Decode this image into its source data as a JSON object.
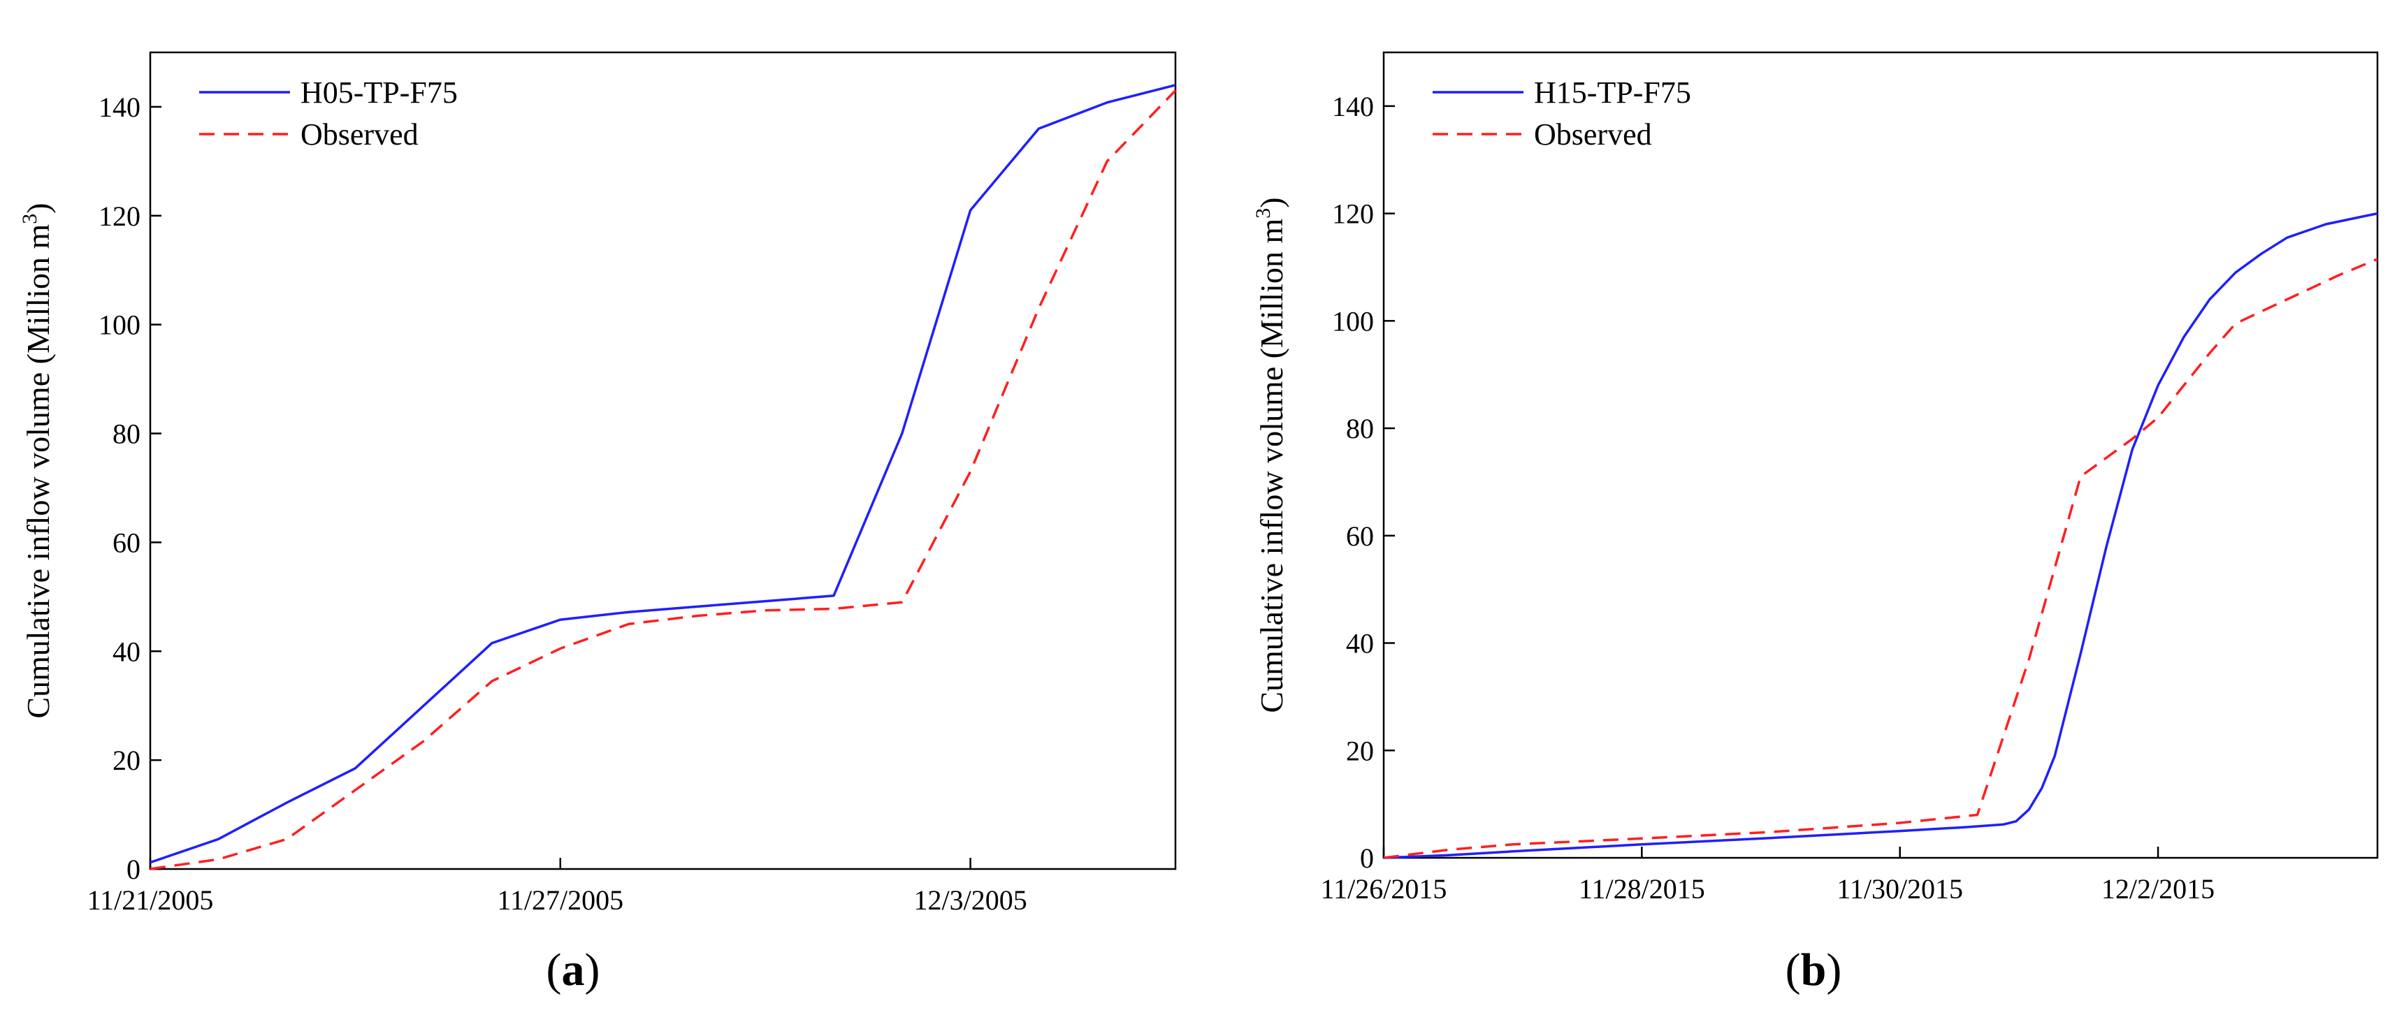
{
  "colors": {
    "model": "#1f1fff",
    "observed": "#ff1f1f",
    "axis": "#000000"
  },
  "chart_data": [
    {
      "type": "line",
      "panel_label": "a",
      "ylabel_prefix": "Cumulative inflow volume (Million m",
      "ylabel_superscript": "3",
      "ylabel_suffix": ")",
      "xlabel": "",
      "x_unit": "days since 11/21/2005",
      "xlim": [
        0,
        15
      ],
      "ylim": [
        0,
        150
      ],
      "yticks": [
        0,
        20,
        40,
        60,
        80,
        100,
        120,
        140
      ],
      "xticks": [
        {
          "value": 0,
          "label": "11/21/2005"
        },
        {
          "value": 6,
          "label": "11/27/2005"
        },
        {
          "value": 12,
          "label": "12/3/2005"
        }
      ],
      "legend_position": "top-left",
      "series": [
        {
          "name": "H05-TP-F75",
          "style": "solid",
          "color": "#1f1fff",
          "x": [
            0,
            1,
            2,
            3,
            4,
            5,
            6,
            7,
            8,
            9,
            10,
            11,
            12,
            13,
            14,
            15
          ],
          "y": [
            1.2,
            5.5,
            12.2,
            18.5,
            30,
            41.5,
            45.8,
            47.2,
            48.2,
            49.2,
            50.2,
            80,
            121,
            136,
            140.8,
            144
          ]
        },
        {
          "name": "Observed",
          "style": "dashed",
          "color": "#ff1f1f",
          "x": [
            0,
            1,
            2,
            3,
            4,
            5,
            6,
            7,
            8,
            9,
            10,
            11,
            12,
            13,
            14,
            15
          ],
          "y": [
            0,
            1.8,
            5.5,
            14.5,
            23.5,
            34.5,
            40.5,
            45,
            46.5,
            47.5,
            47.8,
            49,
            73,
            103,
            130,
            143
          ]
        }
      ]
    },
    {
      "type": "line",
      "panel_label": "b",
      "ylabel_prefix": "Cumulative inflow volume (Million m",
      "ylabel_superscript": "3",
      "ylabel_suffix": ")",
      "xlabel": "",
      "x_unit": "days since 11/26/2015",
      "xlim": [
        0,
        7.7
      ],
      "ylim": [
        0,
        150
      ],
      "yticks": [
        0,
        20,
        40,
        60,
        80,
        100,
        120,
        140
      ],
      "xticks": [
        {
          "value": 0,
          "label": "11/26/2015"
        },
        {
          "value": 2,
          "label": "11/28/2015"
        },
        {
          "value": 4,
          "label": "11/30/2015"
        },
        {
          "value": 6,
          "label": "12/2/2015"
        }
      ],
      "legend_position": "top-left",
      "series": [
        {
          "name": "H15-TP-F75",
          "style": "solid",
          "color": "#1f1fff",
          "x": [
            0,
            0.5,
            1,
            2,
            3,
            4,
            4.5,
            4.8,
            4.9,
            5.0,
            5.1,
            5.2,
            5.4,
            5.6,
            5.8,
            6.0,
            6.2,
            6.4,
            6.6,
            6.8,
            7.0,
            7.3,
            7.6,
            7.7
          ],
          "y": [
            0,
            0.5,
            1.2,
            2.5,
            3.7,
            5,
            5.7,
            6.2,
            6.8,
            9,
            13,
            19,
            38,
            58,
            76,
            88,
            97,
            104,
            109,
            112.5,
            115.5,
            118,
            119.5,
            120
          ]
        },
        {
          "name": "Observed",
          "style": "dashed",
          "color": "#ff1f1f",
          "x": [
            0,
            0.5,
            1,
            2,
            3,
            4,
            4.6,
            5.0,
            5.4,
            5.8,
            6.0,
            6.2,
            6.4,
            6.6,
            7.0,
            7.4,
            7.7
          ],
          "y": [
            0,
            1.5,
            2.5,
            3.6,
            4.8,
            6.5,
            8,
            37,
            71,
            78,
            82,
            88,
            94,
            99.5,
            104,
            108.5,
            111.5
          ]
        }
      ]
    }
  ]
}
